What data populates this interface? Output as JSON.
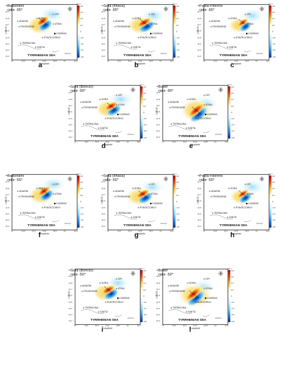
{
  "panels": [
    {
      "label": "a",
      "source": "Balsorano",
      "rake": "rake -90°"
    },
    {
      "label": "b",
      "source": "Sora (Ithaca)",
      "rake": "rake -90°"
    },
    {
      "label": "c",
      "source": "Posta-Fibreno",
      "rake": "rake -90°"
    },
    {
      "label": "d",
      "source": "Sora (Boncio)",
      "rake": "rake -90°"
    },
    {
      "label": "e",
      "source": "Boxer",
      "rake": "rake -90°"
    },
    {
      "label": "f",
      "source": "Balsorano",
      "rake": "rake -50°"
    },
    {
      "label": "g",
      "source": "Sora (Ithaca)",
      "rake": "rake -50°"
    },
    {
      "label": "h",
      "source": "Posta-Fibreno",
      "rake": "rake -50°"
    },
    {
      "label": "i",
      "source": "Sora (Boncio)",
      "rake": "rake -50°"
    },
    {
      "label": "l",
      "source": "Boxer",
      "rake": "rake -50°"
    }
  ],
  "towns": {
    "sora": "SORA",
    "opi": "OPI",
    "anagni": "ANAGNI",
    "frosinone": "FROSINONE",
    "atina": "ATINA",
    "cassino": "CASSINO",
    "pontecorvo": "PONTECORVO",
    "terracina": "TERRACINA",
    "gaeta": "GAETA"
  },
  "sea_label": "TYRRHENIAN SEA",
  "axes": {
    "xlabel": "Longitude",
    "ylabel": "Latitude",
    "xticks": [
      "13",
      "13.2",
      "13.4",
      "13.6",
      "13.8",
      "14",
      "14.2"
    ],
    "yticks": [
      "42",
      "41.9",
      "41.8",
      "41.7",
      "41.6",
      "41.5",
      "41.4",
      "41.3",
      "41.2"
    ]
  },
  "colorbar": {
    "exponent": "x10⁻³",
    "ticks": [
      "0.8",
      "0.6",
      "0.4",
      "0.2",
      "0",
      "-0.2",
      "-0.4",
      "-0.6",
      "-0.8"
    ],
    "colors": {
      "pos": "#b40000",
      "mid": "#ffffff",
      "neg": "#0b2a9c"
    }
  },
  "north_icon": "compass-rose-icon",
  "scale_label": "0 10 km"
}
